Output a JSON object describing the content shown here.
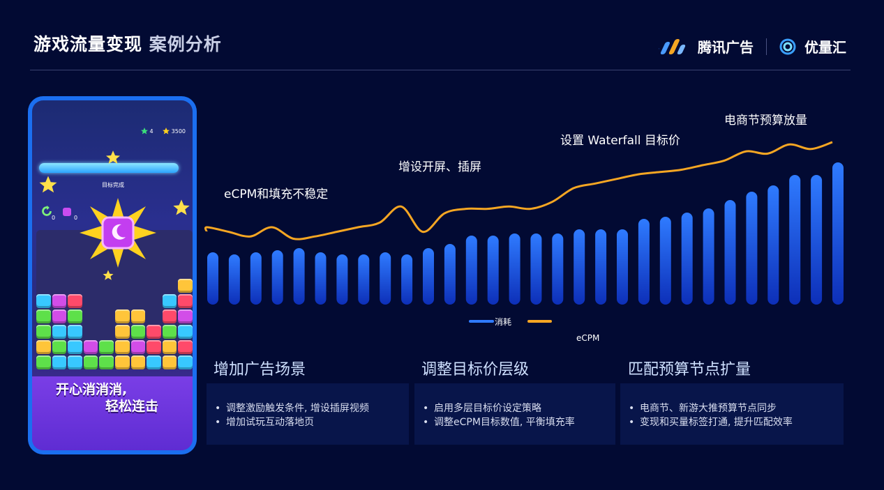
{
  "header": {
    "title_main": "游戏流量变现",
    "title_accent": "案例分析",
    "logo_tencent_ads": "腾讯广告",
    "logo_youlianghui": "优量汇"
  },
  "phone": {
    "hud_stars": "4",
    "hud_score": "3500",
    "progress_label": "目标完成",
    "counter_left": "0",
    "counter_right": "0",
    "slogan_line1": "开心消消消,",
    "slogan_line2": "轻松连击"
  },
  "annotations": [
    "eCPM和填充不稳定",
    "增设开屏、插屏",
    "设置 Waterfall 目标价",
    "电商节预算放量"
  ],
  "chart_data": {
    "type": "bar",
    "series": [
      {
        "name": "消耗",
        "color": "#2f7bff",
        "values": [
          25,
          24,
          25,
          26,
          27,
          25,
          24,
          24,
          25,
          24,
          27,
          29,
          33,
          33,
          34,
          34,
          34,
          36,
          36,
          36,
          41,
          42,
          44,
          46,
          50,
          54,
          57,
          62,
          62,
          68
        ]
      },
      {
        "name": "eCPM",
        "color": "#f5a623",
        "values": [
          40,
          38,
          36,
          40,
          35,
          36,
          38,
          40,
          42,
          49,
          38,
          46,
          48,
          48,
          49,
          48,
          51,
          57,
          59,
          61,
          63,
          64,
          65,
          67,
          69,
          73,
          72,
          76,
          74,
          77
        ]
      }
    ],
    "legend": [
      "消耗",
      "eCPM"
    ],
    "legend_position": "bottom-center"
  },
  "cards": [
    {
      "title": "增加广告场景",
      "items": [
        "调整激励触发条件, 增设插屏视频",
        "增加试玩互动落地页"
      ]
    },
    {
      "title": "调整目标价层级",
      "items": [
        "启用多层目标价设定策略",
        "调整eCPM目标数值, 平衡填充率"
      ]
    },
    {
      "title": "匹配预算节点扩量",
      "items": [
        "电商节、新游大推预算节点同步",
        "变现和买量标签打通, 提升匹配效率"
      ]
    }
  ]
}
